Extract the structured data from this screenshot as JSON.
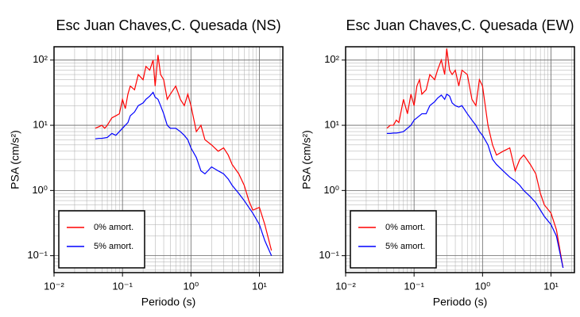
{
  "chart_data": [
    {
      "type": "line",
      "title": "Esc Juan Chaves,C. Quesada (NS)",
      "xlabel": "Periodo (s)",
      "ylabel": "PSA (cm/s²)",
      "xscale": "log",
      "yscale": "log",
      "grid": true,
      "legend": "lower left",
      "xlim": [
        0.01,
        22
      ],
      "ylim": [
        0.055,
        160
      ],
      "xticks": [
        {
          "value": 0.01,
          "label": "10⁻²"
        },
        {
          "value": 0.1,
          "label": "10⁻¹"
        },
        {
          "value": 1,
          "label": "10⁰"
        },
        {
          "value": 10,
          "label": "10¹"
        }
      ],
      "yticks": [
        {
          "value": 0.1,
          "label": "10⁻¹"
        },
        {
          "value": 1,
          "label": "10⁰"
        },
        {
          "value": 10,
          "label": "10¹"
        },
        {
          "value": 100,
          "label": "10²"
        }
      ],
      "x": [
        0.04,
        0.045,
        0.05,
        0.055,
        0.06,
        0.07,
        0.08,
        0.09,
        0.1,
        0.11,
        0.12,
        0.13,
        0.15,
        0.17,
        0.2,
        0.22,
        0.25,
        0.28,
        0.3,
        0.33,
        0.36,
        0.4,
        0.45,
        0.5,
        0.6,
        0.7,
        0.8,
        0.9,
        1.0,
        1.2,
        1.4,
        1.6,
        2.0,
        2.5,
        3,
        3.5,
        4,
        5,
        6,
        7,
        8,
        10,
        12,
        15
      ],
      "series": [
        {
          "name": "0% amort.",
          "color": "#ff0000",
          "values": [
            9,
            9.5,
            10,
            9,
            10,
            13,
            14,
            15,
            25,
            18,
            30,
            40,
            35,
            60,
            50,
            80,
            70,
            100,
            40,
            120,
            60,
            50,
            25,
            30,
            40,
            25,
            20,
            30,
            20,
            8,
            10,
            6,
            5,
            4,
            4.5,
            3.5,
            2.5,
            1.8,
            1.2,
            0.7,
            0.5,
            0.55,
            0.3,
            0.12
          ]
        },
        {
          "name": "5% amort.",
          "color": "#0000ff",
          "values": [
            6.2,
            6.3,
            6.3,
            6.4,
            6.5,
            7.5,
            7,
            8,
            9,
            10,
            11,
            14,
            16,
            20,
            22,
            25,
            28,
            32,
            27,
            25,
            20,
            15,
            10,
            9,
            9,
            8,
            7,
            6,
            4.5,
            3.2,
            2,
            1.8,
            2.3,
            2,
            1.8,
            1.5,
            1.2,
            0.9,
            0.7,
            0.55,
            0.45,
            0.3,
            0.17,
            0.1
          ]
        }
      ]
    },
    {
      "type": "line",
      "title": "Esc Juan Chaves,C. Quesada (EW)",
      "xlabel": "Periodo (s)",
      "ylabel": "PSA (cm/s²)",
      "xscale": "log",
      "yscale": "log",
      "grid": true,
      "legend": "lower left",
      "xlim": [
        0.01,
        22
      ],
      "ylim": [
        0.055,
        160
      ],
      "xticks": [
        {
          "value": 0.01,
          "label": "10⁻²"
        },
        {
          "value": 0.1,
          "label": "10⁻¹"
        },
        {
          "value": 1,
          "label": "10⁰"
        },
        {
          "value": 10,
          "label": "10¹"
        }
      ],
      "yticks": [
        {
          "value": 0.1,
          "label": "10⁻¹"
        },
        {
          "value": 1,
          "label": "10⁰"
        },
        {
          "value": 10,
          "label": "10¹"
        },
        {
          "value": 100,
          "label": "10²"
        }
      ],
      "x": [
        0.04,
        0.045,
        0.05,
        0.055,
        0.06,
        0.07,
        0.08,
        0.09,
        0.1,
        0.11,
        0.12,
        0.13,
        0.15,
        0.17,
        0.2,
        0.22,
        0.25,
        0.28,
        0.3,
        0.33,
        0.36,
        0.4,
        0.45,
        0.5,
        0.6,
        0.7,
        0.8,
        0.9,
        1.0,
        1.2,
        1.4,
        1.6,
        2.0,
        2.5,
        3,
        3.5,
        4,
        5,
        6,
        7,
        8,
        10,
        12,
        15
      ],
      "series": [
        {
          "name": "0% amort.",
          "color": "#ff0000",
          "values": [
            9,
            10,
            10,
            12,
            11,
            25,
            15,
            30,
            20,
            40,
            50,
            30,
            35,
            60,
            50,
            70,
            100,
            60,
            150,
            70,
            60,
            70,
            40,
            70,
            60,
            25,
            20,
            50,
            40,
            10,
            5,
            3.5,
            4,
            4.5,
            2,
            3,
            3.5,
            2.5,
            1.8,
            0.9,
            0.6,
            0.45,
            0.25,
            0.065
          ]
        },
        {
          "name": "5% amort.",
          "color": "#0000ff",
          "values": [
            7.5,
            7.5,
            7.6,
            7.6,
            7.7,
            8,
            9,
            10,
            12,
            13,
            14,
            15,
            15,
            20,
            23,
            26,
            29,
            25,
            30,
            28,
            22,
            20,
            19,
            20,
            15,
            12,
            10,
            8,
            7,
            5,
            3,
            2.5,
            2,
            1.6,
            1.4,
            1.2,
            1.0,
            0.8,
            0.65,
            0.5,
            0.4,
            0.3,
            0.2,
            0.065
          ]
        }
      ]
    }
  ]
}
